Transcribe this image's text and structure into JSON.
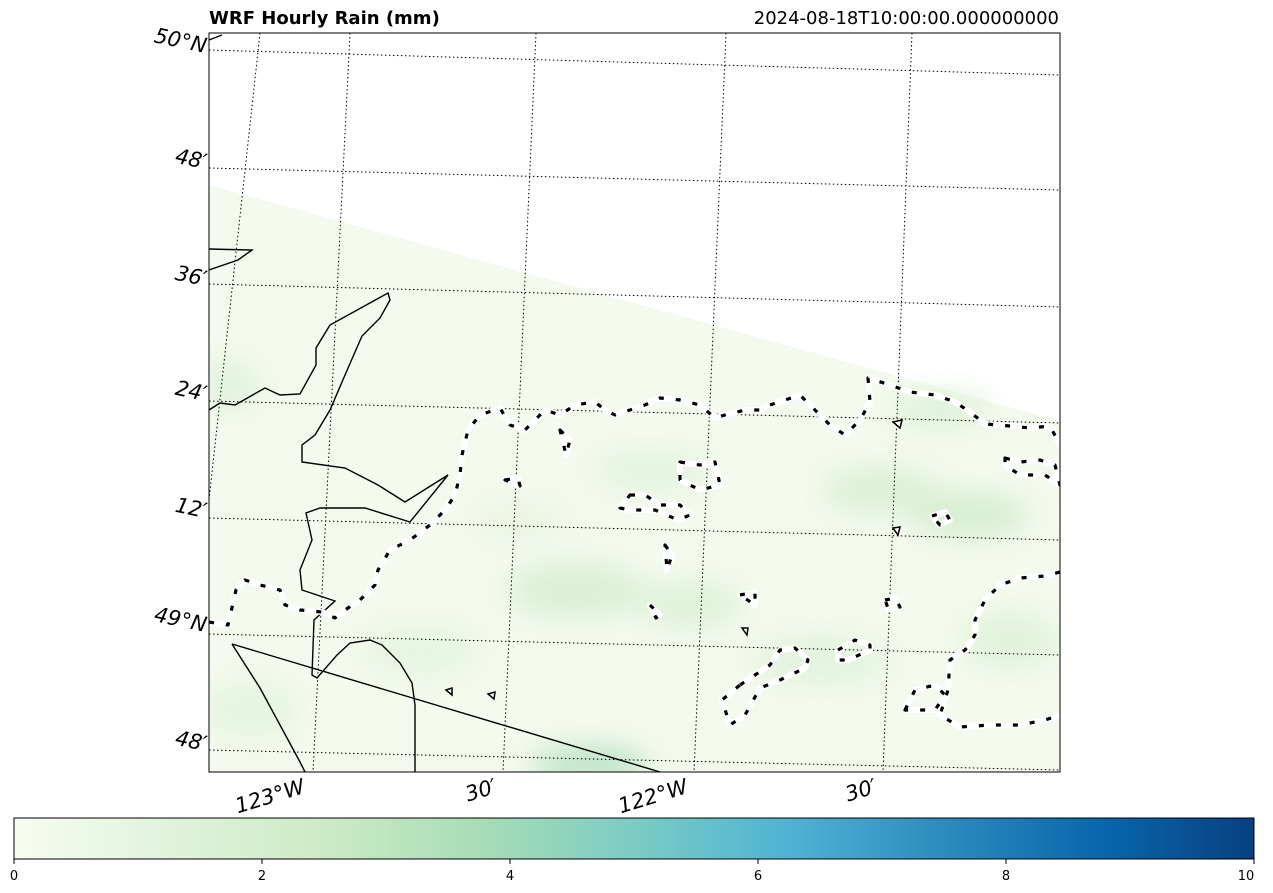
{
  "map": {
    "title": "WRF Hourly Rain (mm)",
    "timestamp": "2024-08-18T10:00:00.000000000",
    "lat_labels": [
      "50°N",
      "48′",
      "36′",
      "24′",
      "12′",
      "49°N",
      "48′"
    ],
    "lon_labels": [
      "123°W",
      "30′",
      "122°W",
      "30′"
    ]
  },
  "colorbar": {
    "range": [
      0,
      10
    ],
    "colormap": "GnBu",
    "stops": [
      "#f7fcf0",
      "#e0f3db",
      "#ccebc5",
      "#a8ddb5",
      "#7bccc4",
      "#4eb3d3",
      "#2b8cbe",
      "#0868ac",
      "#084081"
    ],
    "ticks": [
      "0",
      "2",
      "4",
      "6",
      "8",
      "10"
    ]
  },
  "colors": {
    "frame": "#000000",
    "gridline": "#000000",
    "coastline": "#000000",
    "border_dashes": "#000000",
    "no_data": "#ffffff"
  }
}
